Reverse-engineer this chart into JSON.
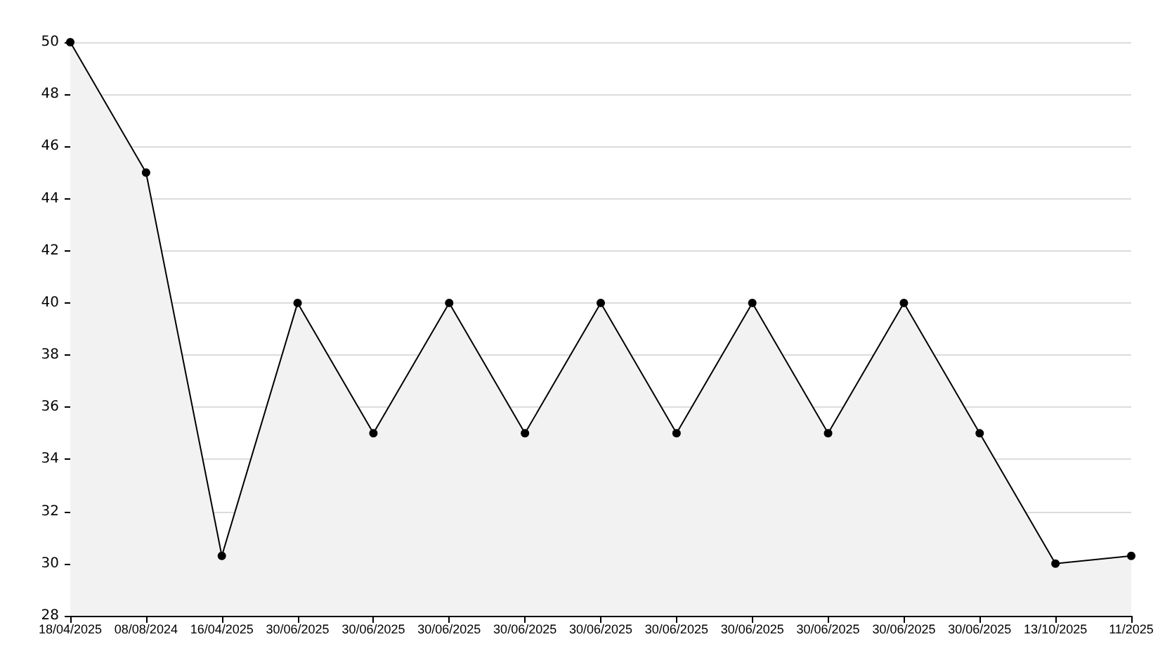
{
  "chart_data": {
    "type": "area",
    "categories": [
      "18/04/2025",
      "08/08/2024",
      "16/04/2025",
      "30/06/2025",
      "30/06/2025",
      "30/06/2025",
      "30/06/2025",
      "30/06/2025",
      "30/06/2025",
      "30/06/2025",
      "30/06/2025",
      "30/06/2025",
      "30/06/2025",
      "13/10/2025",
      "11/2025"
    ],
    "series": [
      {
        "color": "#000000",
        "values": [
          50,
          45,
          30.3,
          40,
          35,
          40,
          35,
          40,
          35,
          40,
          35,
          40,
          35,
          30,
          30.3
        ]
      }
    ],
    "ylim": [
      28,
      50
    ],
    "yticks": [
      28,
      30,
      32,
      34,
      36,
      38,
      40,
      42,
      44,
      46,
      48,
      50
    ],
    "grid": "y",
    "marker": "circle",
    "line_style": "solid"
  }
}
